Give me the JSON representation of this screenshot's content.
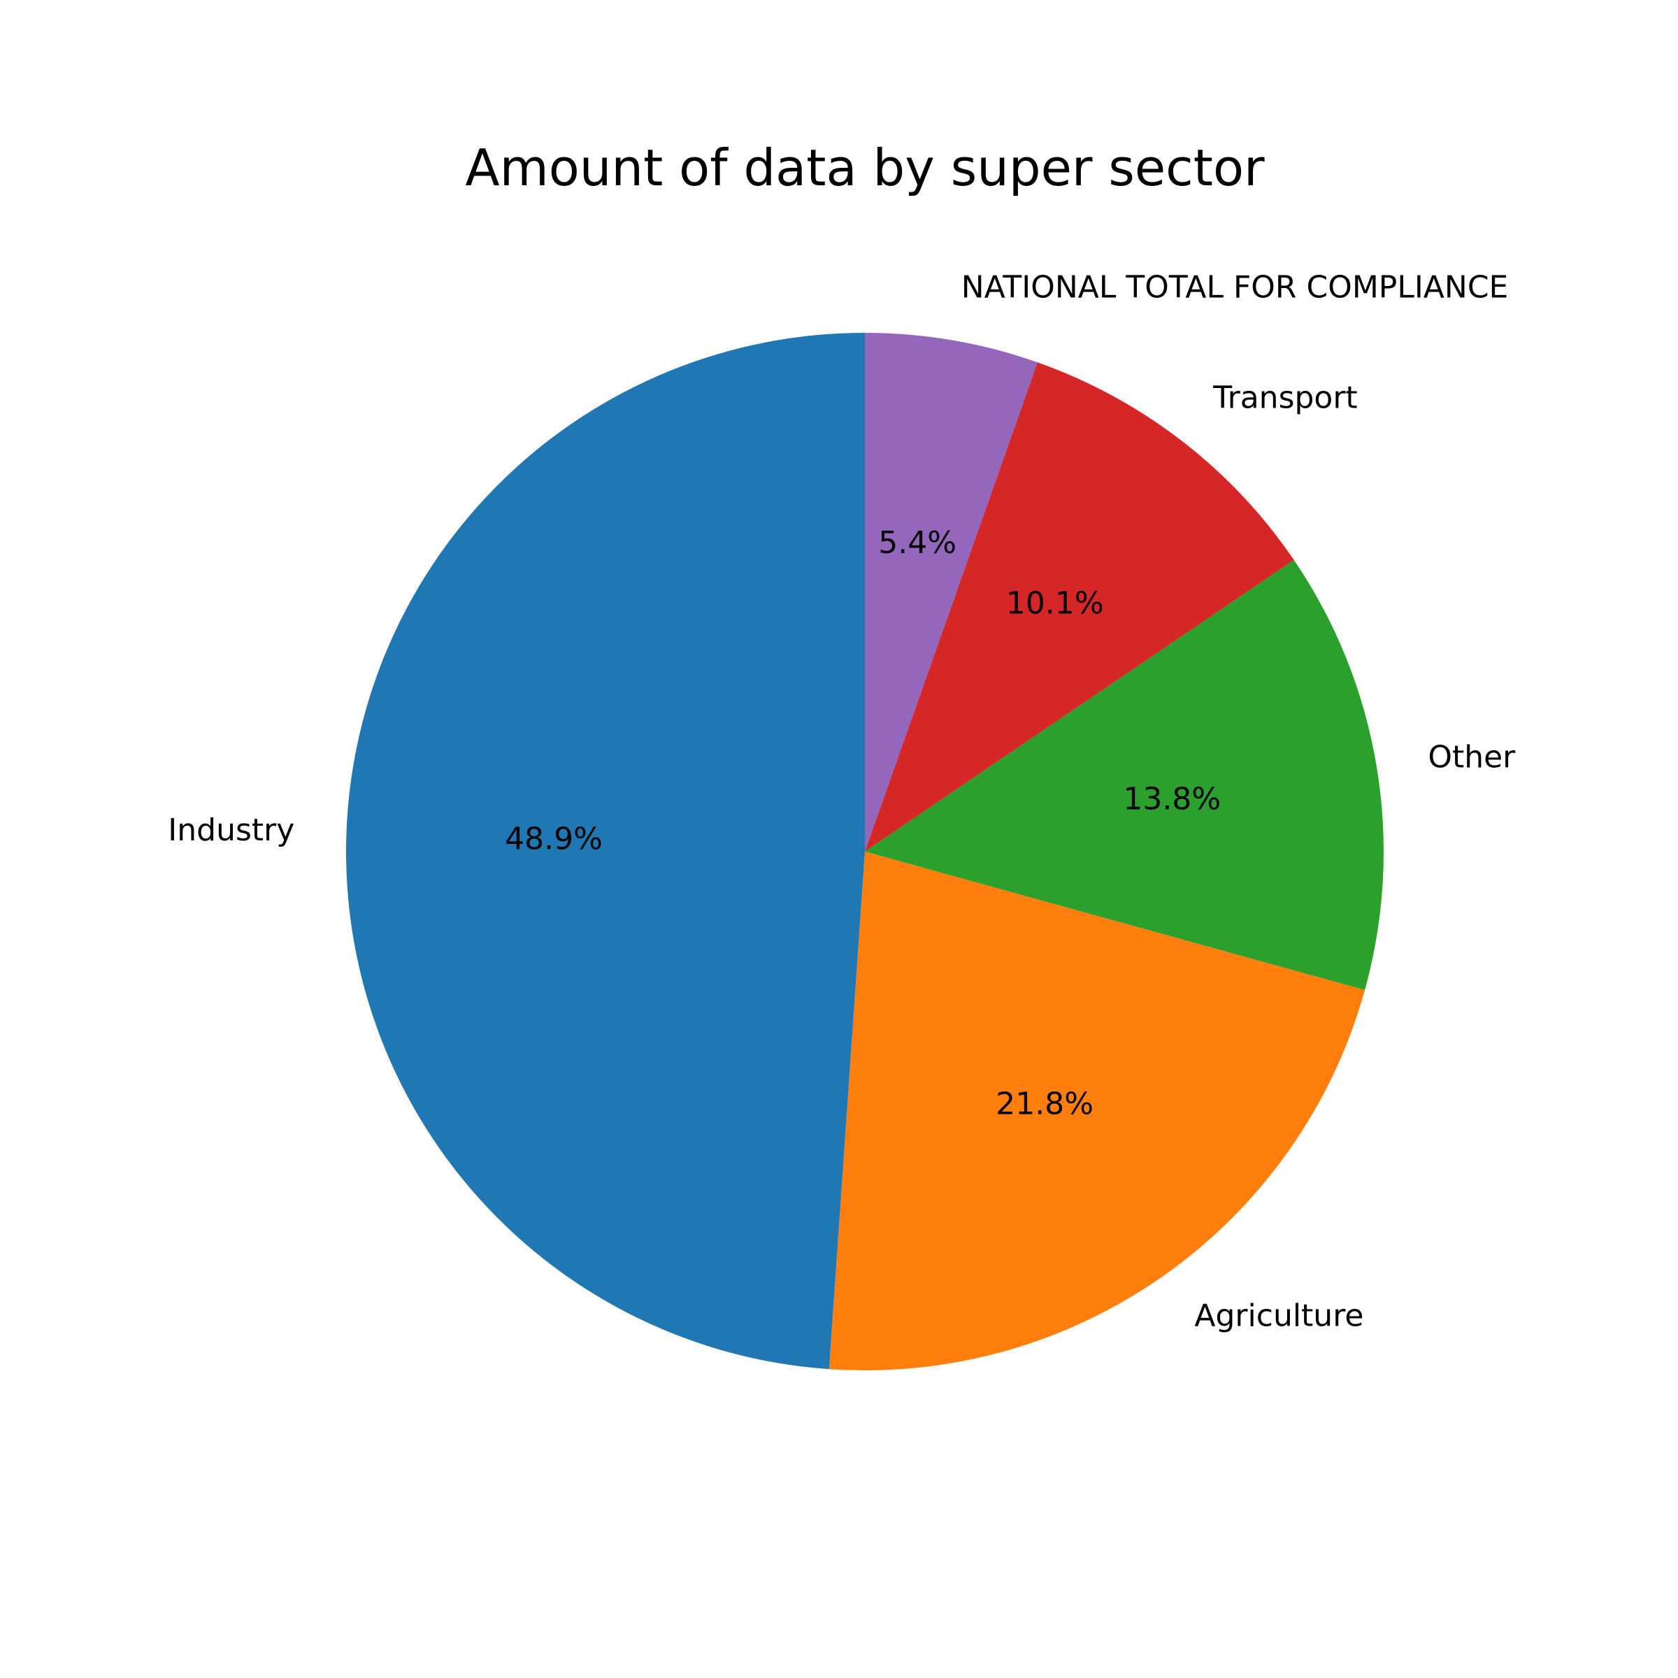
{
  "chart_data": {
    "type": "pie",
    "title": "Amount of data by super sector",
    "start_angle_deg": 90,
    "direction": "clockwise",
    "slices": [
      {
        "label": "NATIONAL TOTAL FOR COMPLIANCE",
        "value": 5.4,
        "pct_label": "5.4%",
        "color": "#9467bd"
      },
      {
        "label": "Transport",
        "value": 10.1,
        "pct_label": "10.1%",
        "color": "#d62728"
      },
      {
        "label": "Other",
        "value": 13.8,
        "pct_label": "13.8%",
        "color": "#2ca02c"
      },
      {
        "label": "Agriculture",
        "value": 21.8,
        "pct_label": "21.8%",
        "color": "#ff7f0e"
      },
      {
        "label": "Industry",
        "value": 48.9,
        "pct_label": "48.9%",
        "color": "#1f77b4"
      }
    ]
  }
}
